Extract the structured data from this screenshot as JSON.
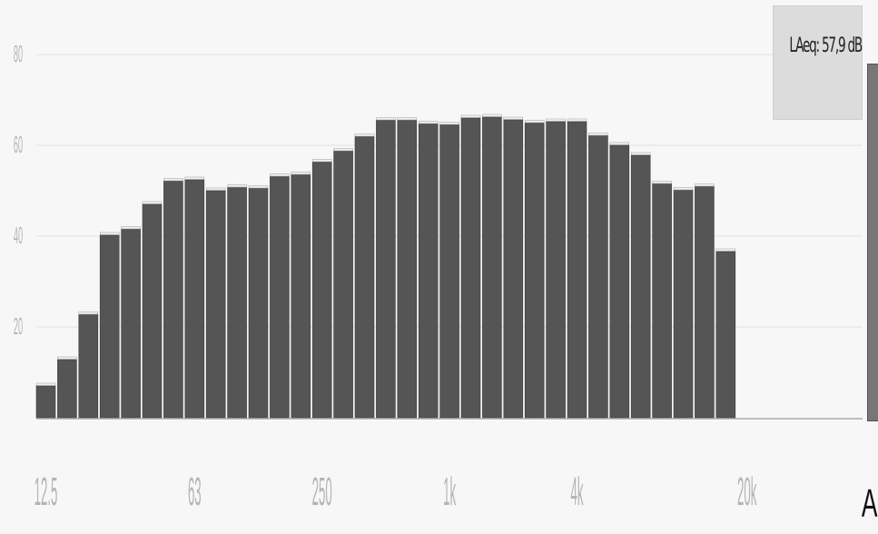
{
  "chart_data": {
    "type": "bar",
    "ylim": [
      0,
      80
    ],
    "yticks": [
      0,
      20,
      40,
      60,
      80
    ],
    "xtick_labels": [
      "12.5",
      "63",
      "250",
      "1k",
      "4k",
      "20k"
    ],
    "xtick_positions": [
      0,
      7,
      13,
      19,
      25,
      33
    ],
    "grid": true,
    "values": [
      7,
      12.8,
      22.7,
      40.2,
      41.5,
      47,
      52.1,
      52.4,
      50,
      50.7,
      50.5,
      53.1,
      53.5,
      56.3,
      58.7,
      61.9,
      65.5,
      65.5,
      64.7,
      64.5,
      66,
      66.2,
      65.6,
      64.9,
      65.2,
      65.2,
      62.1,
      60,
      57.8,
      51.5,
      50.1,
      50.9,
      36.6
    ],
    "color": "#555555",
    "peak_color": "#f1f1f1"
  },
  "leq": {
    "label": "LAeq: 57,9 dB"
  },
  "meter": {
    "color": "#777777"
  }
}
